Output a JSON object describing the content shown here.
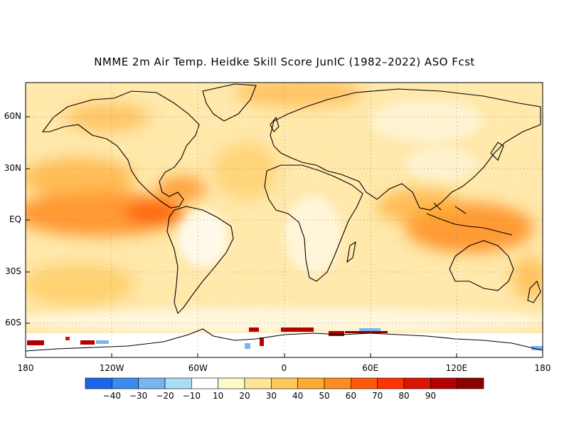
{
  "title": "NMME 2m Air Temp. Heidke Skill Score JunIC (1982–2022) ASO Fcst",
  "map": {
    "lat_labels": [
      {
        "text": "60N",
        "lat": 60
      },
      {
        "text": "30N",
        "lat": 30
      },
      {
        "text": "EQ",
        "lat": 0
      },
      {
        "text": "30S",
        "lat": -30
      },
      {
        "text": "60S",
        "lat": -60
      }
    ],
    "lon_labels": [
      {
        "text": "180",
        "lon": -180
      },
      {
        "text": "120W",
        "lon": -120
      },
      {
        "text": "60W",
        "lon": -60
      },
      {
        "text": "0",
        "lon": 0
      },
      {
        "text": "60E",
        "lon": 60
      },
      {
        "text": "120E",
        "lon": 120
      },
      {
        "text": "180",
        "lon": 180
      }
    ]
  },
  "colorbar": {
    "colors": [
      "#1e64e6",
      "#3c8cf0",
      "#78b4f0",
      "#aadcf5",
      "#ffffff",
      "#fff8c8",
      "#ffe696",
      "#ffc85a",
      "#ffaa32",
      "#ff8c1e",
      "#ff5a0a",
      "#ff3200",
      "#dc1400",
      "#b40000",
      "#8c0000"
    ],
    "labels": [
      "−40",
      "−30",
      "−20",
      "−10",
      "10",
      "20",
      "30",
      "40",
      "50",
      "60",
      "70",
      "80",
      "90"
    ]
  }
}
